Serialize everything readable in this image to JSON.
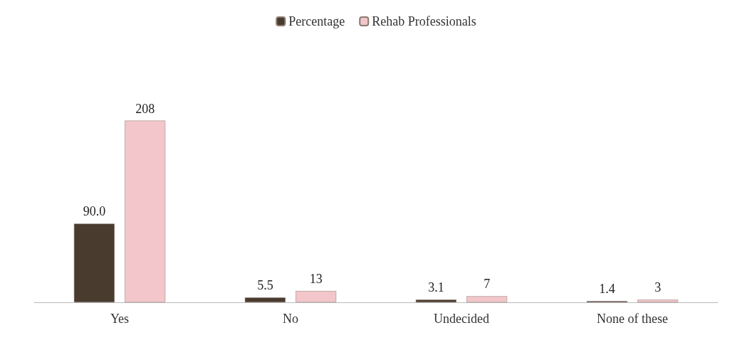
{
  "chart_data": {
    "type": "bar",
    "categories": [
      "Yes",
      "No",
      "Undecided",
      "None of these"
    ],
    "series": [
      {
        "name": "Percentage",
        "color": "#4a3b2f",
        "values": [
          90.0,
          5.5,
          3.1,
          1.4
        ],
        "value_labels": [
          "90.0",
          "5.5",
          "3.1",
          "1.4"
        ]
      },
      {
        "name": "Rehab Professionals",
        "color": "#f2c6ca",
        "values": [
          208,
          13,
          7,
          3
        ],
        "value_labels": [
          "208",
          "13",
          "7",
          "3"
        ]
      }
    ],
    "legend": "top"
  }
}
